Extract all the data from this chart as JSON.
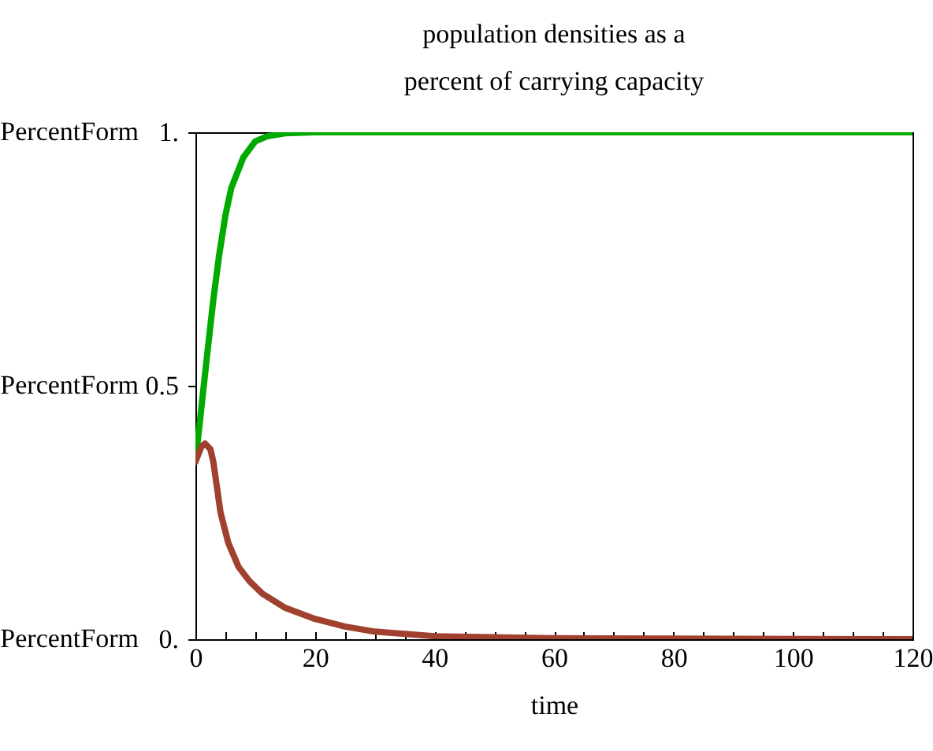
{
  "chart_data": {
    "type": "line",
    "title": [
      "population densities as a",
      "percent of carrying capacity"
    ],
    "xlabel": "time",
    "xlim": [
      0,
      120
    ],
    "ylim": [
      0,
      1
    ],
    "xticks": [
      0,
      {
        "value": 5,
        "label": null
      },
      {
        "value": 10,
        "label": null
      },
      {
        "value": 15,
        "label": null
      },
      20,
      {
        "value": 25,
        "label": null
      },
      {
        "value": 30,
        "label": null
      },
      {
        "value": 35,
        "label": null
      },
      40,
      {
        "value": 45,
        "label": null
      },
      {
        "value": 50,
        "label": null
      },
      {
        "value": 55,
        "label": null
      },
      60,
      {
        "value": 65,
        "label": null
      },
      {
        "value": 70,
        "label": null
      },
      {
        "value": 75,
        "label": null
      },
      80,
      {
        "value": 85,
        "label": null
      },
      {
        "value": 90,
        "label": null
      },
      {
        "value": 95,
        "label": null
      },
      100,
      {
        "value": 105,
        "label": null
      },
      {
        "value": 110,
        "label": null
      },
      {
        "value": 115,
        "label": null
      },
      120
    ],
    "yticks": [
      {
        "value": 0,
        "label": "0."
      },
      0.5,
      {
        "value": 1,
        "label": "1."
      }
    ],
    "annotations": [
      "PercentForm",
      "PercentForm",
      "PercentForm"
    ],
    "line_style": "solid",
    "marker": "none",
    "series": [
      {
        "color": "#00aa00",
        "x": [
          0,
          1,
          2,
          3,
          4,
          5,
          6,
          8,
          10,
          12,
          15,
          20,
          40,
          120
        ],
        "values": [
          0.35,
          0.457,
          0.565,
          0.67,
          0.76,
          0.835,
          0.89,
          0.95,
          0.982,
          0.992,
          0.998,
          1,
          1,
          1
        ]
      },
      {
        "color": "#a0402f",
        "x": [
          0,
          1,
          1.6,
          2.5,
          3,
          4.2,
          5.5,
          7.2,
          9,
          11.2,
          15,
          20,
          25,
          30,
          40,
          60,
          80,
          120
        ],
        "values": [
          0.35,
          0.38,
          0.386,
          0.375,
          0.35,
          0.25,
          0.19,
          0.143,
          0.115,
          0.09,
          0.062,
          0.04,
          0.025,
          0.015,
          0.006,
          0.002,
          0.001,
          0
        ]
      }
    ]
  }
}
